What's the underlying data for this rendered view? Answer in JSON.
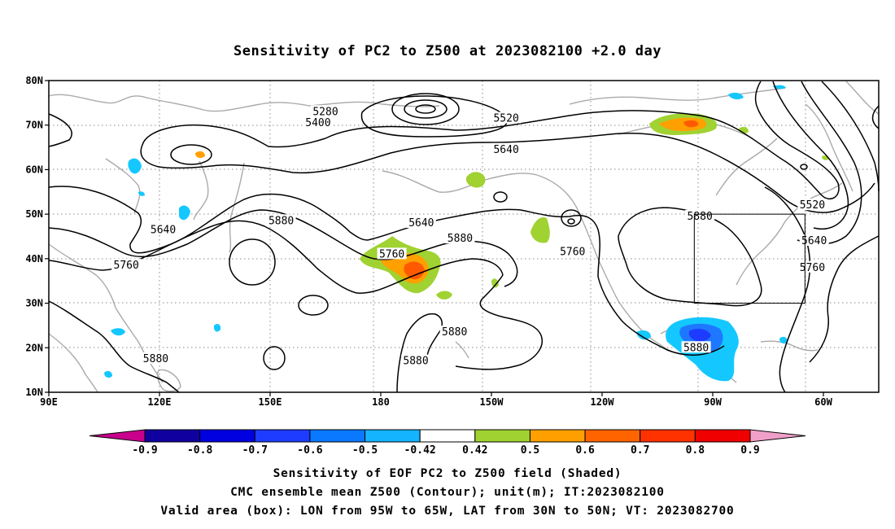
{
  "title": "Sensitivity of PC2 to Z500 at 2023082100 +2.0 day",
  "lat_ticks": [
    "80N",
    "70N",
    "60N",
    "50N",
    "40N",
    "30N",
    "20N",
    "10N"
  ],
  "lon_ticks": [
    "90E",
    "120E",
    "150E",
    "180",
    "150W",
    "120W",
    "90W",
    "60W"
  ],
  "contour_labels": [
    {
      "text": "5280",
      "lon": 165,
      "lat": 73
    },
    {
      "text": "5400",
      "lon": 163,
      "lat": 70.5
    },
    {
      "text": "5520",
      "lon": -146,
      "lat": 71.5
    },
    {
      "text": "5640",
      "lon": -146,
      "lat": 64.5
    },
    {
      "text": "5520",
      "lon": -63,
      "lat": 52
    },
    {
      "text": "5640",
      "lon": -62.5,
      "lat": 44
    },
    {
      "text": "5760",
      "lon": -63,
      "lat": 38
    },
    {
      "text": "5880",
      "lon": -93.5,
      "lat": 49.5
    },
    {
      "text": "5640",
      "lon": -169,
      "lat": 48
    },
    {
      "text": "5760",
      "lon": -177,
      "lat": 41
    },
    {
      "text": "5880",
      "lon": -158.5,
      "lat": 44.5
    },
    {
      "text": "5760",
      "lon": -128,
      "lat": 41.5
    },
    {
      "text": "5880",
      "lon": 153,
      "lat": 48.5
    },
    {
      "text": "5640",
      "lon": 121,
      "lat": 46.5
    },
    {
      "text": "5760",
      "lon": 111,
      "lat": 38.5
    },
    {
      "text": "5880",
      "lon": -160,
      "lat": 23.5
    },
    {
      "text": "5880",
      "lon": -170.5,
      "lat": 17
    },
    {
      "text": "5880",
      "lon": 119,
      "lat": 17.5
    },
    {
      "text": "5880",
      "lon": -94.5,
      "lat": 20
    }
  ],
  "colorbar": {
    "labels": [
      "-0.9",
      "-0.8",
      "-0.7",
      "-0.6",
      "-0.5",
      "-0.42",
      "0.42",
      "0.5",
      "0.6",
      "0.7",
      "0.8",
      "0.9"
    ],
    "colors": [
      "#1000a0",
      "#0000e0",
      "#1e3cff",
      "#0a78ff",
      "#14b4ff",
      "#ffffff",
      "#a0d232",
      "#ffa000",
      "#ff6400",
      "#ff3200",
      "#f00000"
    ],
    "under_color": "#c8008c",
    "over_color": "#f0a0c8"
  },
  "shading_colors": {
    "light_blue": "#14c8ff",
    "blue": "#1e78ff",
    "deep_blue": "#1e3cff",
    "green": "#a0d232",
    "orange": "#ffa000",
    "red_orange": "#ff5a00"
  },
  "valid_box": {
    "lon_min": -95,
    "lon_max": -65,
    "lat_min": 30,
    "lat_max": 50
  },
  "captions": [
    "Sensitivity of EOF PC2 to Z500 field (Shaded)",
    "CMC ensemble mean Z500 (Contour); unit(m); IT:2023082100",
    "Valid area (box): LON from 95W to 65W, LAT from 30N to 50N; VT: 2023082700"
  ]
}
